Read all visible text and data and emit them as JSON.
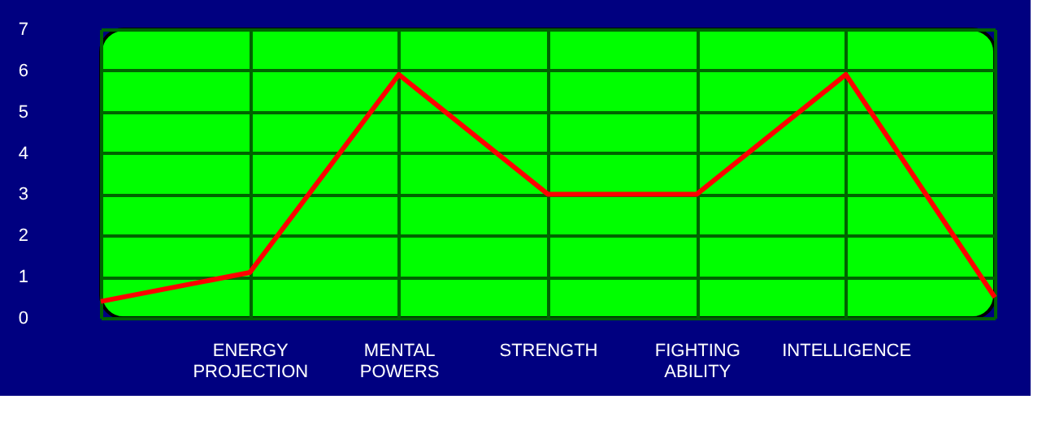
{
  "chart_data": {
    "type": "line",
    "categories": [
      null,
      "ENERGY PROJECTION",
      "MENTAL POWERS",
      "STRENGTH",
      "FIGHTING ABILITY",
      "INTELLIGENCE",
      null
    ],
    "series": [
      {
        "color": "#ff0000",
        "values": [
          0.4,
          1.1,
          5.9,
          3,
          3,
          5.9,
          0.5
        ]
      }
    ],
    "ylim": [
      0,
      7
    ],
    "yticks": [
      0,
      1,
      2,
      3,
      4,
      5,
      6,
      7
    ],
    "grid": true,
    "marker": "none",
    "line_style": "solid"
  }
}
